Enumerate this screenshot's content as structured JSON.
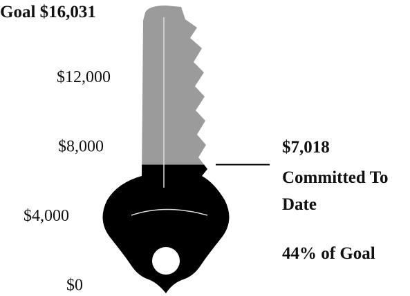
{
  "chart_data": {
    "type": "key-thermometer",
    "goal": {
      "label": "Goal",
      "value": 16031,
      "value_label": "$16,031"
    },
    "committed": {
      "value": 7018,
      "value_label": "$7,018",
      "label": "Committed To Date"
    },
    "percent": {
      "value": 44,
      "value_label": "44% of Goal"
    },
    "ylim": [
      0,
      16031
    ],
    "yticks": [
      {
        "value": 0,
        "label": "$0"
      },
      {
        "value": 4000,
        "label": "$4,000"
      },
      {
        "value": 8000,
        "label": "$8,000"
      },
      {
        "value": 12000,
        "label": "$12,000"
      }
    ],
    "empty_color": "#9b9b9b",
    "fill_color": "#000000"
  }
}
